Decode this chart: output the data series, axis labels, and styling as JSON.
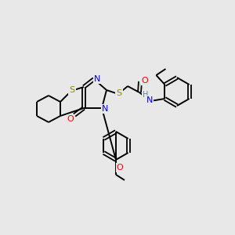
{
  "bg_color": "#e8e8e8",
  "atom_colors": {
    "S": "#8b8b00",
    "N": "#0000ff",
    "O": "#ff0000",
    "C": "#000000",
    "H": "#4a9090"
  },
  "bond_color": "#000000"
}
